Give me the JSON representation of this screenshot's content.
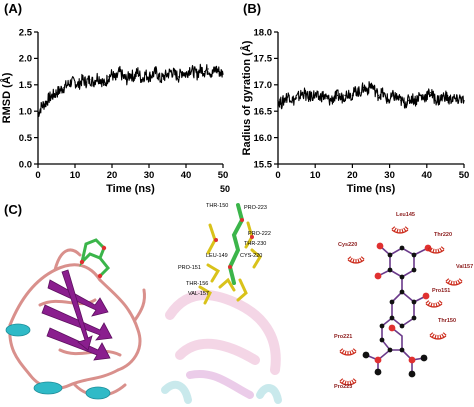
{
  "panels": {
    "a": {
      "label": "(A)"
    },
    "b": {
      "label": "(B)"
    },
    "c": {
      "label": "(C)"
    }
  },
  "stray_label": "50",
  "chart_data": [
    {
      "type": "line",
      "panel": "(A)",
      "title": "",
      "xlabel": "Time (ns)",
      "ylabel": "RMSD (Å)",
      "xlim": [
        0,
        50
      ],
      "ylim": [
        0.0,
        2.5
      ],
      "xticks": [
        "0",
        "10",
        "20",
        "30",
        "40",
        "50"
      ],
      "yticks": [
        "0.0",
        "0.5",
        "1.0",
        "1.5",
        "2.0",
        "2.5"
      ],
      "color": "#000000",
      "series": [
        {
          "x": [
            0,
            1,
            2,
            3,
            4,
            5,
            6,
            7,
            8,
            9,
            10,
            11,
            12,
            13,
            14,
            15,
            16,
            17,
            18,
            19,
            20,
            21,
            22,
            23,
            24,
            25,
            26,
            27,
            28,
            29,
            30,
            31,
            32,
            33,
            34,
            35,
            36,
            37,
            38,
            39,
            40,
            41,
            42,
            43,
            44,
            45,
            46,
            47,
            48,
            49,
            50
          ],
          "y": [
            0.95,
            1.1,
            1.15,
            1.25,
            1.3,
            1.35,
            1.4,
            1.45,
            1.5,
            1.55,
            1.55,
            1.5,
            1.6,
            1.55,
            1.6,
            1.55,
            1.65,
            1.6,
            1.5,
            1.65,
            1.7,
            1.6,
            1.75,
            1.65,
            1.6,
            1.7,
            1.65,
            1.75,
            1.6,
            1.7,
            1.65,
            1.7,
            1.75,
            1.6,
            1.65,
            1.7,
            1.75,
            1.7,
            1.65,
            1.75,
            1.7,
            1.8,
            1.75,
            1.7,
            1.8,
            1.75,
            1.8,
            1.7,
            1.8,
            1.75,
            1.7
          ]
        }
      ]
    },
    {
      "type": "line",
      "panel": "(B)",
      "title": "",
      "xlabel": "Time (ns)",
      "ylabel": "Radius of gyration (Å)",
      "xlim": [
        0,
        50
      ],
      "ylim": [
        15.5,
        18.0
      ],
      "xticks": [
        "0",
        "10",
        "20",
        "30",
        "40",
        "50"
      ],
      "yticks": [
        "15.5",
        "16.0",
        "16.5",
        "17.0",
        "17.5",
        "18.0"
      ],
      "color": "#000000",
      "series": [
        {
          "x": [
            0,
            1,
            2,
            3,
            4,
            5,
            6,
            7,
            8,
            9,
            10,
            11,
            12,
            13,
            14,
            15,
            16,
            17,
            18,
            19,
            20,
            21,
            22,
            23,
            24,
            25,
            26,
            27,
            28,
            29,
            30,
            31,
            32,
            33,
            34,
            35,
            36,
            37,
            38,
            39,
            40,
            41,
            42,
            43,
            44,
            45,
            46,
            47,
            48,
            49,
            50
          ],
          "y": [
            16.7,
            16.65,
            16.75,
            16.8,
            16.7,
            16.75,
            16.8,
            16.85,
            16.75,
            16.8,
            16.8,
            16.75,
            16.8,
            16.75,
            16.7,
            16.75,
            16.8,
            16.75,
            16.8,
            16.85,
            16.8,
            16.9,
            16.85,
            16.95,
            16.9,
            17.0,
            16.9,
            16.8,
            16.85,
            16.75,
            16.7,
            16.8,
            16.75,
            16.7,
            16.65,
            16.7,
            16.75,
            16.7,
            16.8,
            16.75,
            16.8,
            16.85,
            16.75,
            16.7,
            16.75,
            16.8,
            16.7,
            16.75,
            16.7,
            16.75,
            16.7
          ]
        }
      ]
    }
  ],
  "residues_3d": [
    "THR-150",
    "PRO-223",
    "PRO-222",
    "THR-230",
    "PRO-151",
    "LEU-149",
    "CYS-220",
    "THR-156",
    "VAL-157"
  ],
  "residues_2d": [
    "Leu145",
    "Thr220",
    "Cys220",
    "Val157",
    "Pro151",
    "Thr150",
    "Pro221",
    "Pro223"
  ],
  "colors": {
    "helix": "#2fbac7",
    "sheet": "#8a1e8e",
    "coil": "#d9908c",
    "ligand_carbon": "#3bb54a",
    "oxygen": "#e03030",
    "hydrophobic": "#cc2a1a",
    "bond": "#6a3a8a"
  }
}
